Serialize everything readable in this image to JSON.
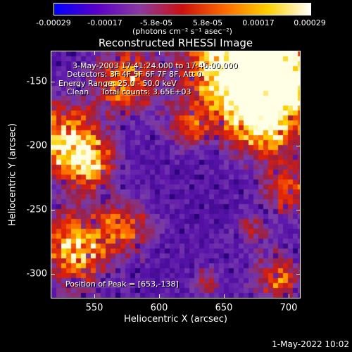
{
  "chart_data": {
    "type": "heatmap",
    "title": "Reconstructed RHESSI Image",
    "xlabel": "Heliocentric X (arcsec)",
    "ylabel": "Heliocentric Y (arcsec)",
    "xlim": [
      517,
      710
    ],
    "ylim": [
      -320,
      -128
    ],
    "x_ticks": [
      550,
      600,
      650,
      700
    ],
    "y_ticks": [
      -150,
      -200,
      -250,
      -300
    ],
    "colorbar": {
      "min": -0.00029,
      "max": 0.00029,
      "tick_labels": [
        "-0.00029",
        "-0.00017",
        "-5.8e-05",
        "5.8e-05",
        "0.00017",
        "0.00029"
      ],
      "label": "(photons cm⁻² s⁻¹ asec⁻²)",
      "colors": [
        "#0000ff",
        "#5a00c8",
        "#8a3aa0",
        "#cc1010",
        "#ff6a00",
        "#ffd000",
        "#ffffff"
      ]
    },
    "annotations": {
      "time": "3-May-2003 17:41:24.000 to 17:46:00.000",
      "detectors": "Detectors: 3F 4F 5F 6F 7F 8F, Att 0",
      "energy": "Energy Range: 25.0 - 50.0 keV",
      "clean": "Clean     Total counts: 3.65E+03",
      "peak": "Position of Peak = [653,-138]"
    },
    "grid": false
  },
  "timestamp": "1-May-2022 10:02"
}
